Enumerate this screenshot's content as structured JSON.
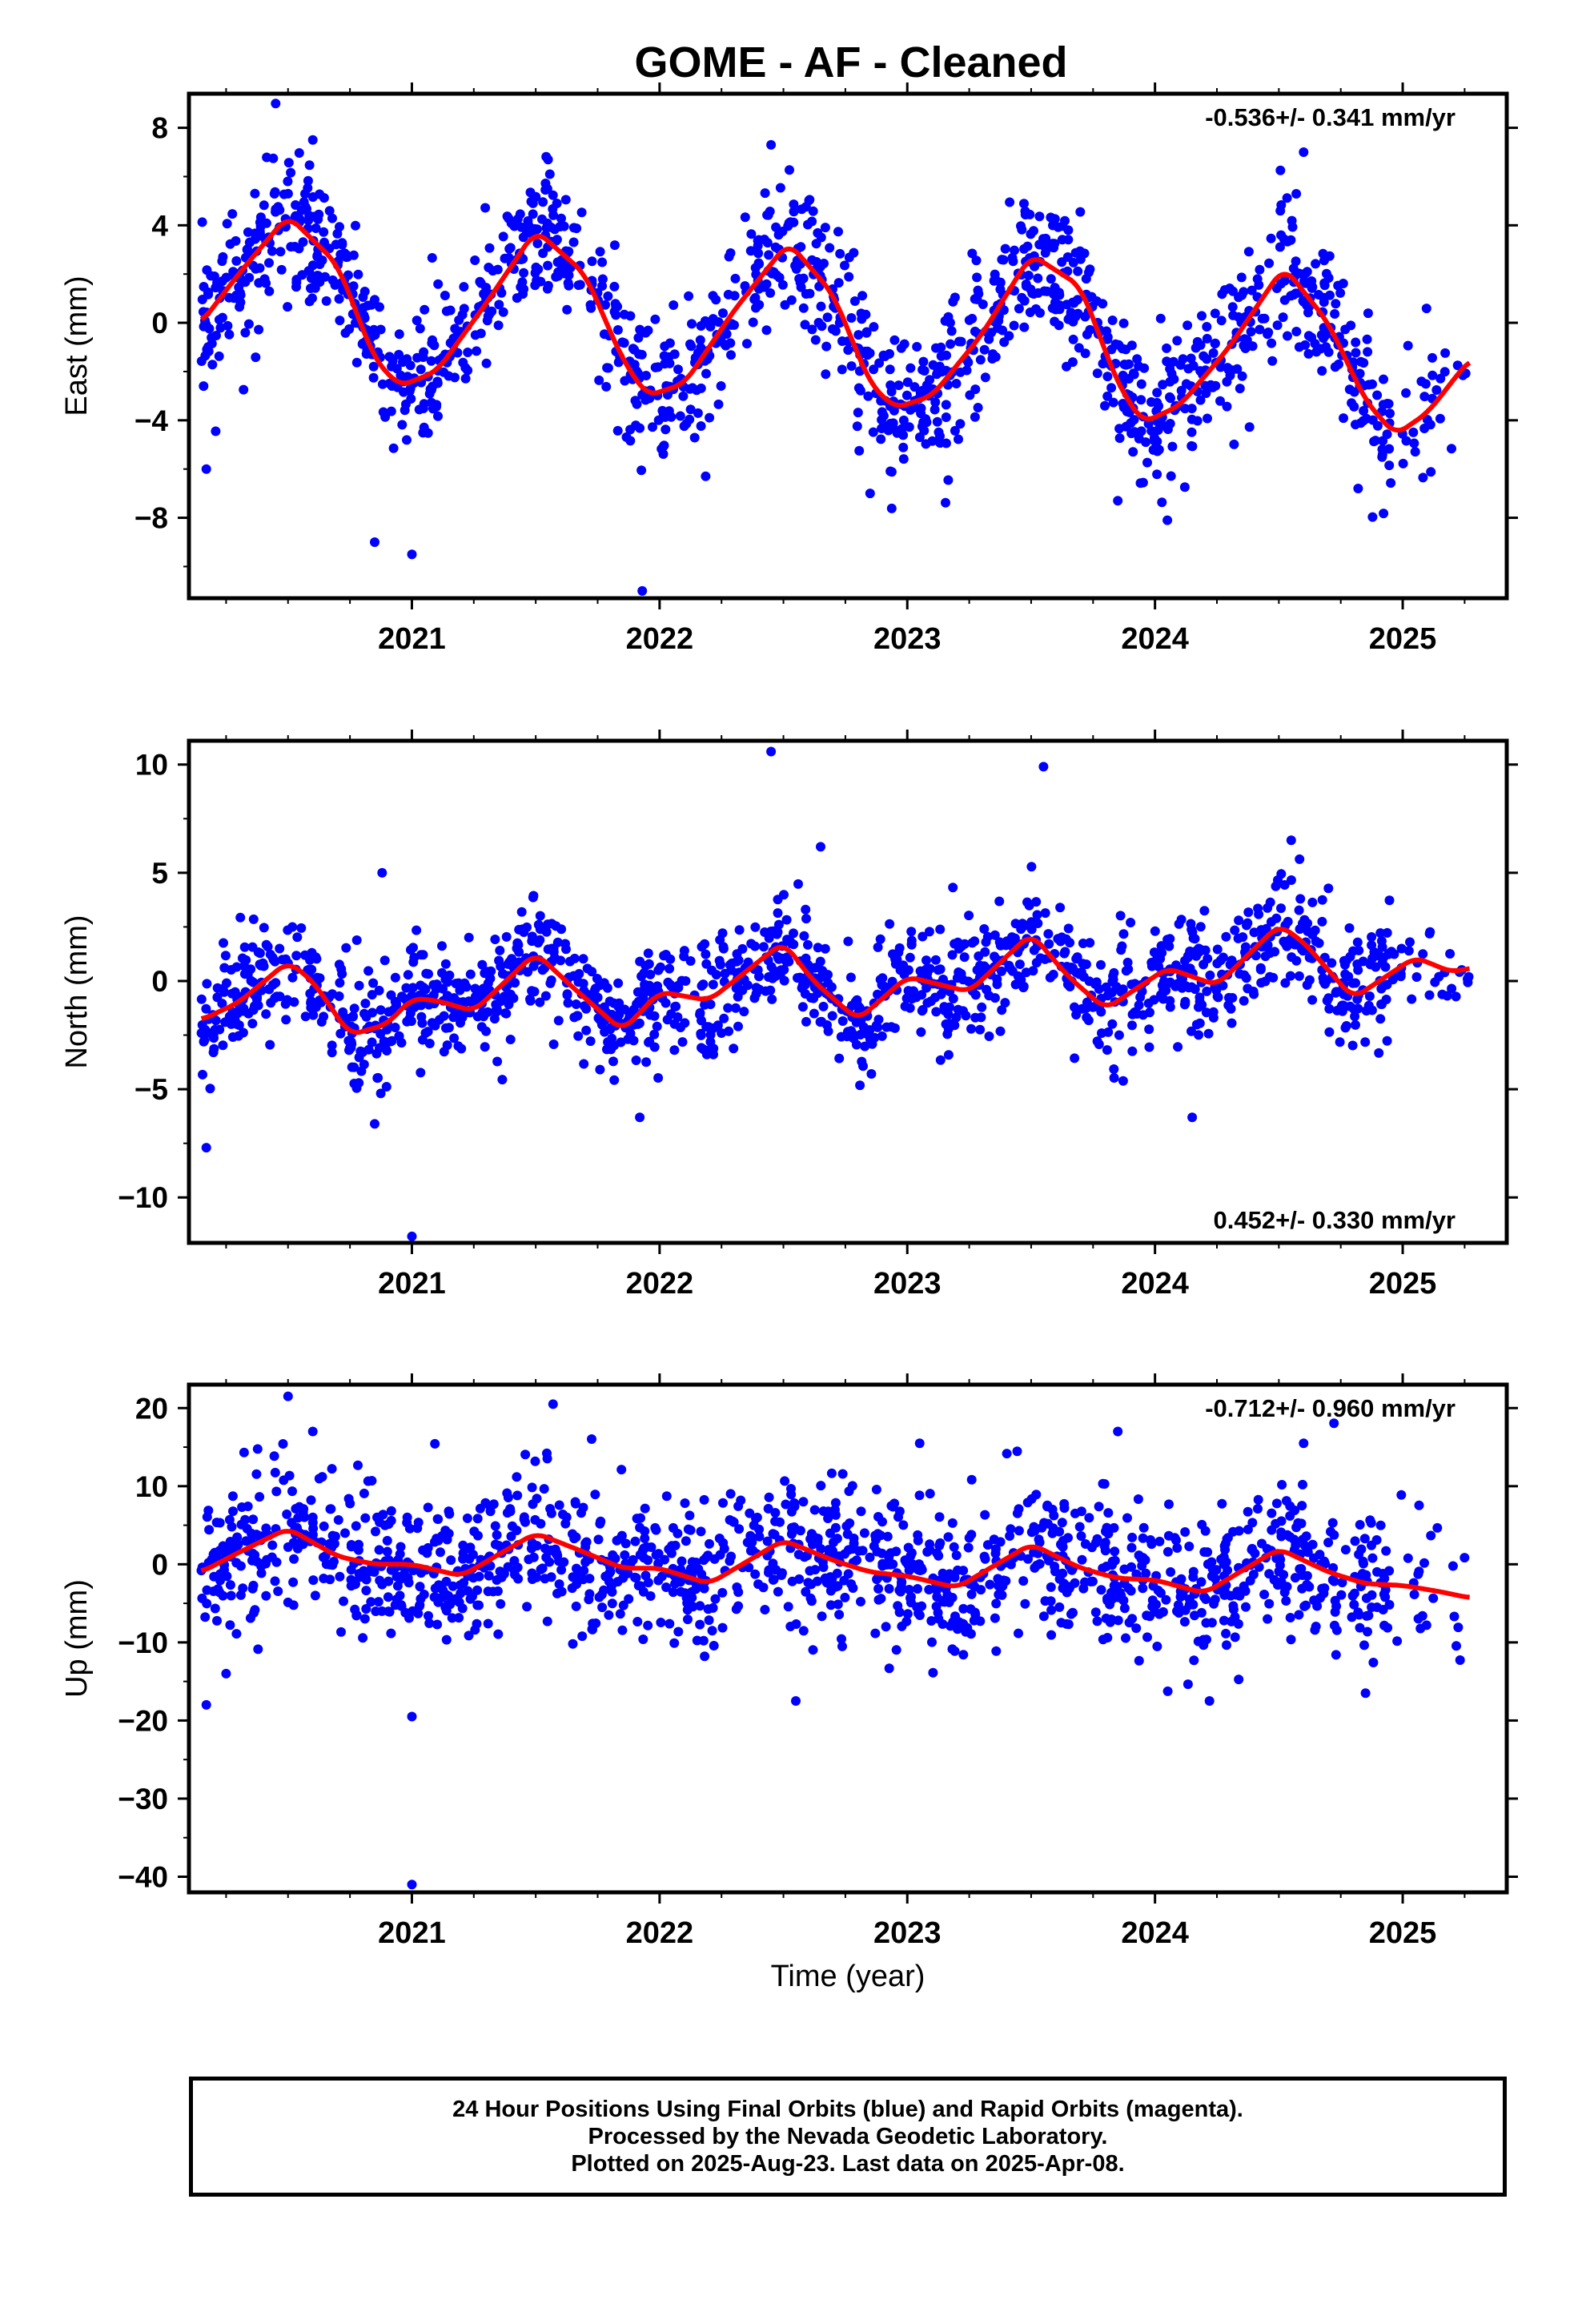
{
  "title": "GOME  - AF - Cleaned",
  "colors": {
    "points": "#0000ff",
    "fit": "#ff0000",
    "frame": "#000000"
  },
  "xlabel": "Time (year)",
  "footer": {
    "line1": "24 Hour Positions Using Final Orbits (blue) and Rapid Orbits (magenta).",
    "line2": "Processed by the Nevada Geodetic Laboratory.",
    "line3": "Plotted on 2025-Aug-23. Last data on 2025-Apr-08."
  },
  "chart_data": [
    {
      "type": "scatter",
      "panel": "east",
      "ylabel": "East (mm)",
      "velocity_label": "-0.536+/- 0.341 mm/yr",
      "velocity_position": "top-right",
      "xlim": [
        2020.1,
        2025.42
      ],
      "ylim": [
        -11.3,
        9.4
      ],
      "yticks": [
        8,
        4,
        0,
        -4,
        -8
      ],
      "ytick_labels": [
        "8",
        "4",
        "0",
        "−4",
        "−8"
      ],
      "xticks": [
        2021,
        2022,
        2023,
        2024,
        2025
      ],
      "xtick_labels": [
        "2021",
        "2022",
        "2023",
        "2024",
        "2025"
      ],
      "trend": {
        "offset": 0.0,
        "rate": -0.536,
        "t0": 2020.15
      },
      "seasonal": [
        {
          "type": "annual",
          "amplitude": 3.5,
          "phase_year": 2020.5
        },
        {
          "type": "semiannual",
          "amplitude": 0.5,
          "phase_year": 2020.55
        }
      ],
      "fit_points": [
        [
          2020.15,
          0.0
        ],
        [
          2020.3,
          2.0
        ],
        [
          2020.5,
          4.4
        ],
        [
          2020.7,
          2.4
        ],
        [
          2020.85,
          -1.5
        ],
        [
          2020.95,
          -2.6
        ],
        [
          2021.1,
          -2.0
        ],
        [
          2021.3,
          0.8
        ],
        [
          2021.5,
          3.8
        ],
        [
          2021.7,
          2.0
        ],
        [
          2021.85,
          -1.5
        ],
        [
          2021.95,
          -3.0
        ],
        [
          2022.1,
          -2.5
        ],
        [
          2022.3,
          0.5
        ],
        [
          2022.52,
          3.3
        ],
        [
          2022.7,
          1.2
        ],
        [
          2022.85,
          -2.5
        ],
        [
          2022.95,
          -3.5
        ],
        [
          2023.1,
          -3.0
        ],
        [
          2023.3,
          -0.5
        ],
        [
          2023.5,
          2.8
        ],
        [
          2023.7,
          1.5
        ],
        [
          2023.85,
          -2.5
        ],
        [
          2023.95,
          -4.1
        ],
        [
          2024.1,
          -3.4
        ],
        [
          2024.3,
          -1.0
        ],
        [
          2024.52,
          2.3
        ],
        [
          2024.7,
          0.0
        ],
        [
          2024.85,
          -3.2
        ],
        [
          2024.97,
          -4.6
        ],
        [
          2025.1,
          -3.7
        ],
        [
          2025.27,
          -1.5
        ]
      ],
      "scatter_summary": {
        "n_points": 1500,
        "noise_sd_mm": 1.5,
        "outlier_min": -11.0,
        "outlier_max": 9.0
      },
      "outliers": [
        [
          2020.45,
          9.0
        ],
        [
          2020.17,
          -6.0
        ],
        [
          2020.85,
          -9.0
        ],
        [
          2021.0,
          -9.5
        ],
        [
          2021.93,
          -11.0
        ],
        [
          2021.55,
          6.7
        ],
        [
          2022.45,
          7.3
        ],
        [
          2023.85,
          -7.3
        ],
        [
          2024.05,
          -8.1
        ],
        [
          2024.6,
          7.0
        ],
        [
          2024.82,
          -6.8
        ],
        [
          2020.6,
          7.5
        ]
      ]
    },
    {
      "type": "scatter",
      "panel": "north",
      "ylabel": "North (mm)",
      "velocity_label": "0.452+/- 0.330 mm/yr",
      "velocity_position": "bottom-right",
      "xlim": [
        2020.1,
        2025.42
      ],
      "ylim": [
        -12.1,
        11.1
      ],
      "yticks": [
        10,
        5,
        0,
        -5,
        -10
      ],
      "ytick_labels": [
        "10",
        "5",
        "0",
        "−5",
        "−10"
      ],
      "xticks": [
        2021,
        2022,
        2023,
        2024,
        2025
      ],
      "xtick_labels": [
        "2021",
        "2022",
        "2023",
        "2024",
        "2025"
      ],
      "fit_points": [
        [
          2020.15,
          -1.8
        ],
        [
          2020.3,
          -1.0
        ],
        [
          2020.5,
          0.9
        ],
        [
          2020.6,
          0.0
        ],
        [
          2020.75,
          -2.5
        ],
        [
          2020.9,
          -2.0
        ],
        [
          2021.0,
          -0.8
        ],
        [
          2021.1,
          -0.9
        ],
        [
          2021.25,
          -1.4
        ],
        [
          2021.5,
          1.3
        ],
        [
          2021.65,
          -0.3
        ],
        [
          2021.85,
          -2.3
        ],
        [
          2022.0,
          -0.5
        ],
        [
          2022.2,
          -0.9
        ],
        [
          2022.5,
          1.8
        ],
        [
          2022.62,
          0.0
        ],
        [
          2022.8,
          -1.8
        ],
        [
          2023.0,
          0.2
        ],
        [
          2023.25,
          -0.5
        ],
        [
          2023.5,
          2.2
        ],
        [
          2023.65,
          0.2
        ],
        [
          2023.8,
          -1.3
        ],
        [
          2024.05,
          0.6
        ],
        [
          2024.25,
          -0.2
        ],
        [
          2024.5,
          2.6
        ],
        [
          2024.6,
          1.8
        ],
        [
          2024.8,
          -0.8
        ],
        [
          2025.05,
          1.1
        ],
        [
          2025.2,
          0.4
        ],
        [
          2025.27,
          0.6
        ]
      ],
      "scatter_summary": {
        "n_points": 1500,
        "noise_sd_mm": 1.3,
        "outlier_min": -11.8,
        "outlier_max": 10.6
      },
      "outliers": [
        [
          2022.45,
          10.6
        ],
        [
          2023.55,
          9.9
        ],
        [
          2021.0,
          -11.8
        ],
        [
          2020.17,
          -7.7
        ],
        [
          2020.88,
          5.0
        ],
        [
          2022.65,
          6.2
        ],
        [
          2024.55,
          6.5
        ],
        [
          2024.15,
          -6.3
        ],
        [
          2020.85,
          -6.6
        ],
        [
          2021.92,
          -6.3
        ]
      ]
    },
    {
      "type": "scatter",
      "panel": "up",
      "ylabel": "Up (mm)",
      "velocity_label": "-0.712+/- 0.960 mm/yr",
      "velocity_position": "top-right",
      "xlim": [
        2020.1,
        2025.42
      ],
      "ylim": [
        -42,
        23
      ],
      "yticks": [
        20,
        10,
        0,
        -10,
        -20,
        -30,
        -40
      ],
      "ytick_labels": [
        "20",
        "10",
        "0",
        "−10",
        "−20",
        "−30",
        "−40"
      ],
      "xticks": [
        2021,
        2022,
        2023,
        2024,
        2025
      ],
      "xtick_labels": [
        "2021",
        "2022",
        "2023",
        "2024",
        "2025"
      ],
      "fit_points": [
        [
          2020.15,
          -1.0
        ],
        [
          2020.3,
          1.5
        ],
        [
          2020.5,
          4.6
        ],
        [
          2020.7,
          1.0
        ],
        [
          2020.85,
          0.0
        ],
        [
          2021.0,
          0.0
        ],
        [
          2021.2,
          -1.5
        ],
        [
          2021.5,
          4.0
        ],
        [
          2021.7,
          1.5
        ],
        [
          2021.85,
          -0.5
        ],
        [
          2022.0,
          -0.5
        ],
        [
          2022.2,
          -2.5
        ],
        [
          2022.5,
          3.1
        ],
        [
          2022.7,
          0.5
        ],
        [
          2022.85,
          -1.0
        ],
        [
          2023.0,
          -1.5
        ],
        [
          2023.2,
          -3.0
        ],
        [
          2023.5,
          2.6
        ],
        [
          2023.7,
          -0.5
        ],
        [
          2023.85,
          -1.8
        ],
        [
          2024.0,
          -2.0
        ],
        [
          2024.2,
          -3.7
        ],
        [
          2024.5,
          2.0
        ],
        [
          2024.7,
          -1.0
        ],
        [
          2024.85,
          -2.5
        ],
        [
          2025.0,
          -2.7
        ],
        [
          2025.15,
          -3.5
        ],
        [
          2025.27,
          -4.3
        ]
      ],
      "scatter_summary": {
        "n_points": 1500,
        "noise_sd_mm": 4.5,
        "outlier_min": -41,
        "outlier_max": 21.5
      },
      "outliers": [
        [
          2021.0,
          -41.0
        ],
        [
          2021.0,
          -19.5
        ],
        [
          2020.17,
          -18.0
        ],
        [
          2020.5,
          21.5
        ],
        [
          2021.57,
          20.5
        ],
        [
          2020.25,
          -14.0
        ],
        [
          2020.6,
          17.0
        ],
        [
          2022.55,
          -17.5
        ],
        [
          2023.05,
          15.5
        ],
        [
          2024.6,
          15.5
        ],
        [
          2024.85,
          -16.5
        ],
        [
          2023.85,
          17.0
        ],
        [
          2024.22,
          -17.5
        ]
      ]
    }
  ]
}
